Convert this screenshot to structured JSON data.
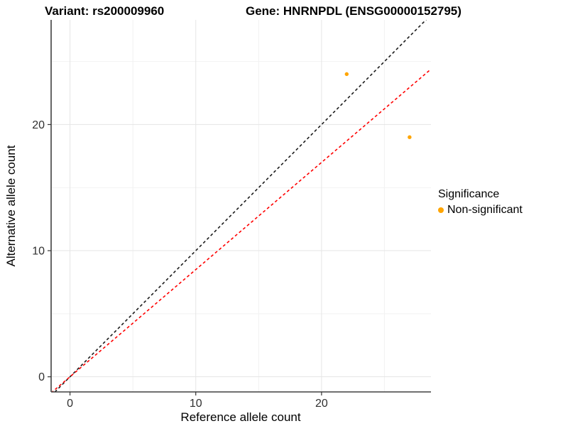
{
  "titles": {
    "variant": "Variant: rs200009960",
    "gene": "Gene: HNRNPDL (ENSG00000152795)"
  },
  "legend": {
    "title": "Significance",
    "items": [
      {
        "label": "Non-significant",
        "color": "#FFA500",
        "marker": "point-icon"
      }
    ]
  },
  "chart_data": {
    "type": "scatter",
    "title": "Variant: rs200009960 / Gene: HNRNPDL (ENSG00000152795)",
    "xlabel": "Reference allele count",
    "ylabel": "Alternative allele count",
    "xlim": [
      -1.5,
      28.7
    ],
    "ylim": [
      -1.2,
      28.3
    ],
    "xticks": [
      0,
      10,
      20
    ],
    "yticks": [
      0,
      10,
      20
    ],
    "xticks_minor": [
      5,
      15,
      25
    ],
    "yticks_minor": [
      5,
      15,
      25
    ],
    "grid": true,
    "legend_position": "right",
    "series": [
      {
        "name": "Non-significant",
        "color": "#FFA500",
        "points": [
          {
            "x": 22,
            "y": 24
          },
          {
            "x": 27,
            "y": 19
          }
        ]
      }
    ],
    "reference_lines": [
      {
        "name": "identity-line",
        "slope": 1,
        "intercept": 0,
        "color": "#1a1a1a",
        "style": "dashed"
      },
      {
        "name": "ratio-line",
        "slope": 0.85,
        "intercept": 0,
        "color": "#ff0000",
        "style": "dashed"
      }
    ]
  }
}
